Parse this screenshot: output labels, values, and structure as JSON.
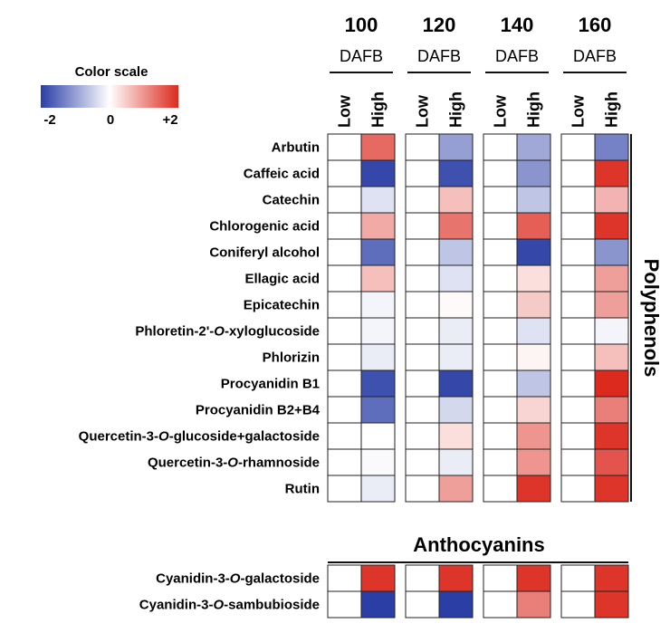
{
  "chart_data": {
    "type": "heatmap",
    "color_scale": {
      "title": "Color scale",
      "min": -2,
      "mid": 0,
      "max": 2,
      "tick_labels": [
        "-2",
        "0",
        "+2"
      ],
      "low_color": "#2a3ea6",
      "mid_color": "#ffffff",
      "high_color": "#dc2a1f"
    },
    "groups": [
      {
        "number": "100",
        "unit": "DAFB"
      },
      {
        "number": "120",
        "unit": "DAFB"
      },
      {
        "number": "140",
        "unit": "DAFB"
      },
      {
        "number": "160",
        "unit": "DAFB"
      }
    ],
    "levels": [
      "Low",
      "High"
    ],
    "sections": [
      {
        "name": "Polyphenols",
        "name_position": "right-vertical",
        "rows": [
          {
            "label": "Arbutin",
            "high": [
              1.4,
              -1.0,
              -0.9,
              -1.3
            ]
          },
          {
            "label": "Caffeic acid",
            "high": [
              -1.9,
              -1.8,
              -1.1,
              1.9
            ]
          },
          {
            "label": "Catechin",
            "high": [
              -0.3,
              0.6,
              -0.6,
              0.7
            ]
          },
          {
            "label": "Chlorogenic acid",
            "high": [
              0.8,
              1.3,
              1.5,
              1.9
            ]
          },
          {
            "label": "Coniferyl alcohol",
            "high": [
              -1.5,
              -0.6,
              -1.9,
              -1.1
            ]
          },
          {
            "label": "Ellagic acid",
            "high": [
              0.6,
              -0.3,
              0.3,
              0.9
            ]
          },
          {
            "label": "Epicatechin",
            "high": [
              -0.1,
              0.05,
              0.5,
              0.9
            ]
          },
          {
            "label": "Phloretin-2'-O-xyloglucoside",
            "high": [
              -0.1,
              -0.2,
              -0.3,
              -0.1
            ]
          },
          {
            "label": "Phlorizin",
            "high": [
              -0.2,
              -0.2,
              0.1,
              0.6
            ]
          },
          {
            "label": "Procyanidin B1",
            "high": [
              -1.8,
              -1.9,
              -0.6,
              2.0
            ]
          },
          {
            "label": "Procyanidin B2+B4",
            "high": [
              -1.5,
              -0.4,
              0.4,
              1.2
            ]
          },
          {
            "label": "Quercetin-3-O-glucoside+galactoside",
            "high": [
              0.0,
              0.3,
              1.0,
              1.9
            ]
          },
          {
            "label": "Quercetin-3-O-rhamnoside",
            "high": [
              -0.05,
              -0.2,
              1.0,
              1.6
            ]
          },
          {
            "label": "Rutin",
            "high": [
              -0.2,
              0.9,
              1.9,
              1.9
            ]
          }
        ]
      },
      {
        "name": "Anthocyanins",
        "name_position": "top",
        "rows": [
          {
            "label": "Cyanidin-3-O-galactoside",
            "high": [
              1.9,
              1.9,
              1.9,
              1.9
            ]
          },
          {
            "label": "Cyanidin-3-O-sambubioside",
            "high": [
              -2.0,
              -2.0,
              1.2,
              1.9
            ]
          }
        ]
      }
    ],
    "low_values": "0 (reference)"
  }
}
